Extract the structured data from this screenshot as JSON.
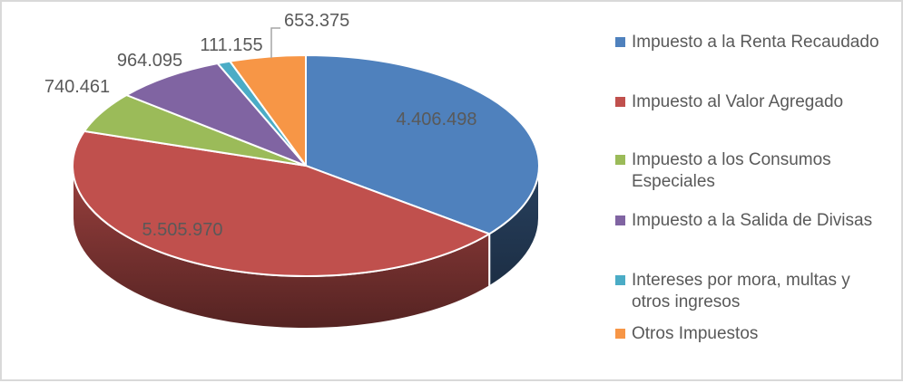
{
  "chart_data": {
    "type": "pie",
    "style": "3d",
    "legend_position": "right",
    "start_angle_deg": 0,
    "direction": "clockwise",
    "label_color": "#595959",
    "legend_text_color": "#595959",
    "leader_line_color": "#A6A6A6",
    "frame_border_color": "#D9D9D9",
    "items": [
      {
        "label": "Impuesto a la Renta Recaudado",
        "value": 4406498,
        "value_label": "4.406.498",
        "color": "#4F81BD"
      },
      {
        "label": "Impuesto al Valor Agregado",
        "value": 5505970,
        "value_label": "5.505.970",
        "color": "#C0504D"
      },
      {
        "label": "Impuesto a los Consumos\nEspeciales",
        "value": 740461,
        "value_label": "740.461",
        "color": "#9BBB59"
      },
      {
        "label": "Impuesto a la Salida de Divisas",
        "value": 964095,
        "value_label": "964.095",
        "color": "#8064A2"
      },
      {
        "label": "Intereses por mora,  multas y\notros ingresos",
        "value": 111155,
        "value_label": "111.155",
        "color": "#4BACC6"
      },
      {
        "label": "Otros Impuestos",
        "value": 653375,
        "value_label": "653.375",
        "color": "#F79646"
      }
    ]
  }
}
